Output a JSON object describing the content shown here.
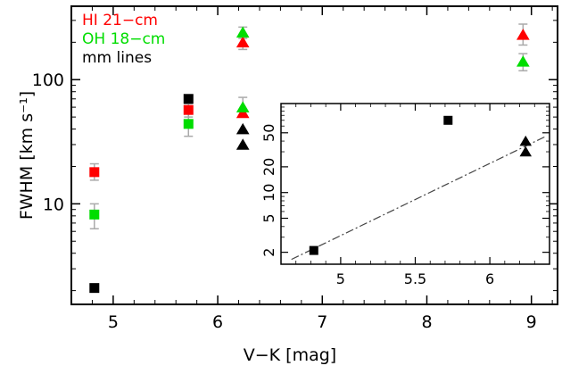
{
  "chart_data": [
    {
      "type": "scatter",
      "xlabel": "V−K [mag]",
      "ylabel": "FWHM [km s⁻¹]",
      "xlim": [
        4.6,
        9.25
      ],
      "ylim": [
        1.55,
        390
      ],
      "yscale": "log",
      "xticks": [
        5,
        6,
        7,
        8,
        9
      ],
      "yticks": [
        10,
        100
      ],
      "xtick_labels": [
        "5",
        "6",
        "7",
        "8",
        "9"
      ],
      "ytick_labels": [
        "10",
        "100"
      ],
      "legend": {
        "placement": "top-left",
        "entries": [
          {
            "text": "HI  21−cm",
            "color": "#ff0000"
          },
          {
            "text": "OH  18−cm",
            "color": "#00dd00"
          },
          {
            "text": "mm lines",
            "color": "#000000"
          }
        ]
      },
      "series": [
        {
          "tag": "hi",
          "color": "#ff0000",
          "points": [
            {
              "x": 4.82,
              "y": 18,
              "marker": "square",
              "err": [
                15.5,
                21
              ]
            },
            {
              "x": 5.72,
              "y": 57,
              "marker": "square",
              "err": [
                50,
                64
              ]
            },
            {
              "x": 6.24,
              "y": 200,
              "marker": "triangle",
              "err": [
                175,
                230
              ]
            },
            {
              "x": 6.24,
              "y": 54,
              "marker": "triangle"
            },
            {
              "x": 8.92,
              "y": 230,
              "marker": "triangle",
              "err": [
                190,
                280
              ]
            }
          ]
        },
        {
          "tag": "oh",
          "color": "#00dd00",
          "points": [
            {
              "x": 4.82,
              "y": 8.2,
              "marker": "square",
              "err": [
                6.3,
                10
              ]
            },
            {
              "x": 5.72,
              "y": 44,
              "marker": "square",
              "err": [
                35,
                54
              ]
            },
            {
              "x": 6.24,
              "y": 240,
              "marker": "triangle",
              "err": [
                215,
                265
              ]
            },
            {
              "x": 6.24,
              "y": 60,
              "marker": "triangle",
              "err": [
                52,
                72
              ]
            },
            {
              "x": 8.92,
              "y": 140,
              "marker": "triangle",
              "err": [
                118,
                162
              ]
            }
          ]
        },
        {
          "tag": "mm",
          "color": "#000000",
          "points": [
            {
              "x": 4.82,
              "y": 2.1,
              "marker": "square"
            },
            {
              "x": 5.72,
              "y": 70,
              "marker": "square"
            },
            {
              "x": 6.24,
              "y": 40,
              "marker": "triangle"
            },
            {
              "x": 6.24,
              "y": 30,
              "marker": "triangle"
            }
          ]
        }
      ]
    },
    {
      "type": "scatter",
      "placement": "inset-lower-right",
      "xlim": [
        4.6,
        6.4
      ],
      "ylim": [
        1.45,
        110
      ],
      "yscale": "log",
      "xticks": [
        5,
        5.5,
        6
      ],
      "yticks": [
        2,
        5,
        10,
        20,
        50
      ],
      "xtick_labels": [
        "5",
        "5.5",
        "6"
      ],
      "ytick_labels": [
        "2",
        "5",
        "10",
        "20",
        "50"
      ],
      "series": [
        {
          "tag": "inset-points",
          "color": "#000000",
          "points": [
            {
              "x": 4.82,
              "y": 2.1,
              "marker": "square"
            },
            {
              "x": 5.72,
              "y": 70,
              "marker": "square"
            },
            {
              "x": 6.24,
              "y": 40,
              "marker": "triangle"
            },
            {
              "x": 6.24,
              "y": 30,
              "marker": "triangle"
            }
          ]
        }
      ],
      "fit_line": {
        "color": "#444444",
        "style": "dash-dot",
        "points": [
          [
            4.67,
            1.65
          ],
          [
            6.37,
            45
          ]
        ]
      }
    }
  ]
}
